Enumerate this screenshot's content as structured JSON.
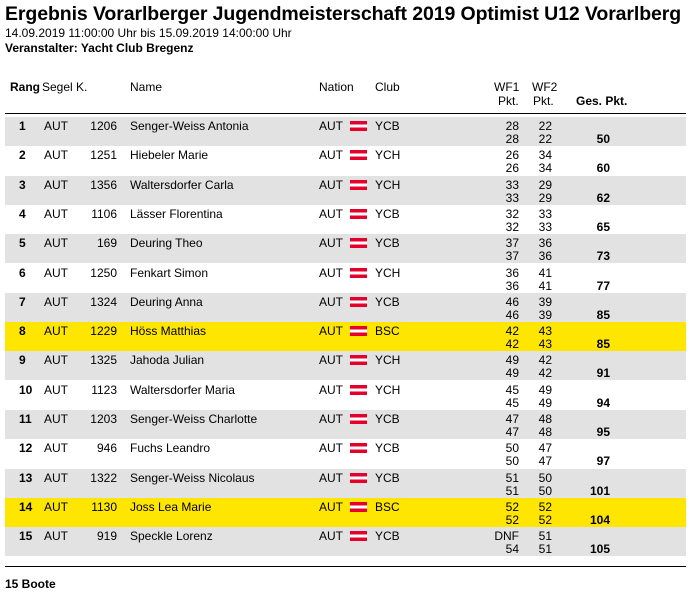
{
  "title": "Ergebnis Vorarlberger Jugendmeisterschaft 2019 Optimist U12 Vorarlberg",
  "dates": "14.09.2019 11:00:00 Uhr bis 15.09.2019 14:00:00 Uhr",
  "organizer": "Veranstalter: Yacht Club Bregenz",
  "headers": {
    "rank": "Rang",
    "sail": "Segel K.",
    "name": "Name",
    "nation": "Nation",
    "club": "Club",
    "wf1_top": "WF1",
    "wf1_bottom": "Pkt.",
    "wf2_top": "WF2",
    "wf2_bottom": "Pkt.",
    "total": "Ges. Pkt."
  },
  "rows": [
    {
      "rank": "1",
      "nat": "AUT",
      "sail": "1206",
      "name": "Senger-Weiss Antonia",
      "nation": "AUT",
      "club": "YCB",
      "wf1a": "28",
      "wf2a": "22",
      "wf1b": "28",
      "wf2b": "22",
      "total": "50",
      "highlight": false
    },
    {
      "rank": "2",
      "nat": "AUT",
      "sail": "1251",
      "name": "Hiebeler Marie",
      "nation": "AUT",
      "club": "YCH",
      "wf1a": "26",
      "wf2a": "34",
      "wf1b": "26",
      "wf2b": "34",
      "total": "60",
      "highlight": false
    },
    {
      "rank": "3",
      "nat": "AUT",
      "sail": "1356",
      "name": "Waltersdorfer Carla",
      "nation": "AUT",
      "club": "YCH",
      "wf1a": "33",
      "wf2a": "29",
      "wf1b": "33",
      "wf2b": "29",
      "total": "62",
      "highlight": false
    },
    {
      "rank": "4",
      "nat": "AUT",
      "sail": "1106",
      "name": "Lässer Florentina",
      "nation": "AUT",
      "club": "YCB",
      "wf1a": "32",
      "wf2a": "33",
      "wf1b": "32",
      "wf2b": "33",
      "total": "65",
      "highlight": false
    },
    {
      "rank": "5",
      "nat": "AUT",
      "sail": "169",
      "name": "Deuring Theo",
      "nation": "AUT",
      "club": "YCB",
      "wf1a": "37",
      "wf2a": "36",
      "wf1b": "37",
      "wf2b": "36",
      "total": "73",
      "highlight": false
    },
    {
      "rank": "6",
      "nat": "AUT",
      "sail": "1250",
      "name": "Fenkart Simon",
      "nation": "AUT",
      "club": "YCH",
      "wf1a": "36",
      "wf2a": "41",
      "wf1b": "36",
      "wf2b": "41",
      "total": "77",
      "highlight": false
    },
    {
      "rank": "7",
      "nat": "AUT",
      "sail": "1324",
      "name": "Deuring Anna",
      "nation": "AUT",
      "club": "YCB",
      "wf1a": "46",
      "wf2a": "39",
      "wf1b": "46",
      "wf2b": "39",
      "total": "85",
      "highlight": false
    },
    {
      "rank": "8",
      "nat": "AUT",
      "sail": "1229",
      "name": "Höss Matthias",
      "nation": "AUT",
      "club": "BSC",
      "wf1a": "42",
      "wf2a": "43",
      "wf1b": "42",
      "wf2b": "43",
      "total": "85",
      "highlight": true
    },
    {
      "rank": "9",
      "nat": "AUT",
      "sail": "1325",
      "name": "Jahoda Julian",
      "nation": "AUT",
      "club": "YCH",
      "wf1a": "49",
      "wf2a": "42",
      "wf1b": "49",
      "wf2b": "42",
      "total": "91",
      "highlight": false
    },
    {
      "rank": "10",
      "nat": "AUT",
      "sail": "1123",
      "name": "Waltersdorfer Maria",
      "nation": "AUT",
      "club": "YCH",
      "wf1a": "45",
      "wf2a": "49",
      "wf1b": "45",
      "wf2b": "49",
      "total": "94",
      "highlight": false
    },
    {
      "rank": "11",
      "nat": "AUT",
      "sail": "1203",
      "name": "Senger-Weiss Charlotte",
      "nation": "AUT",
      "club": "YCB",
      "wf1a": "47",
      "wf2a": "48",
      "wf1b": "47",
      "wf2b": "48",
      "total": "95",
      "highlight": false
    },
    {
      "rank": "12",
      "nat": "AUT",
      "sail": "946",
      "name": "Fuchs Leandro",
      "nation": "AUT",
      "club": "YCB",
      "wf1a": "50",
      "wf2a": "47",
      "wf1b": "50",
      "wf2b": "47",
      "total": "97",
      "highlight": false
    },
    {
      "rank": "13",
      "nat": "AUT",
      "sail": "1322",
      "name": "Senger-Weiss Nicolaus",
      "nation": "AUT",
      "club": "YCB",
      "wf1a": "51",
      "wf2a": "50",
      "wf1b": "51",
      "wf2b": "50",
      "total": "101",
      "highlight": false
    },
    {
      "rank": "14",
      "nat": "AUT",
      "sail": "1130",
      "name": "Joss Lea Marie",
      "nation": "AUT",
      "club": "BSC",
      "wf1a": "52",
      "wf2a": "52",
      "wf1b": "52",
      "wf2b": "52",
      "total": "104",
      "highlight": true
    },
    {
      "rank": "15",
      "nat": "AUT",
      "sail": "919",
      "name": "Speckle Lorenz",
      "nation": "AUT",
      "club": "YCB",
      "wf1a": "DNF",
      "wf2a": "51",
      "wf1b": "54",
      "wf2b": "51",
      "total": "105",
      "highlight": false
    }
  ],
  "footer": "15 Boote",
  "colors": {
    "gray_row": "#e2e2e2",
    "highlight_row": "#ffe600",
    "flag_red": "#e4002b"
  }
}
